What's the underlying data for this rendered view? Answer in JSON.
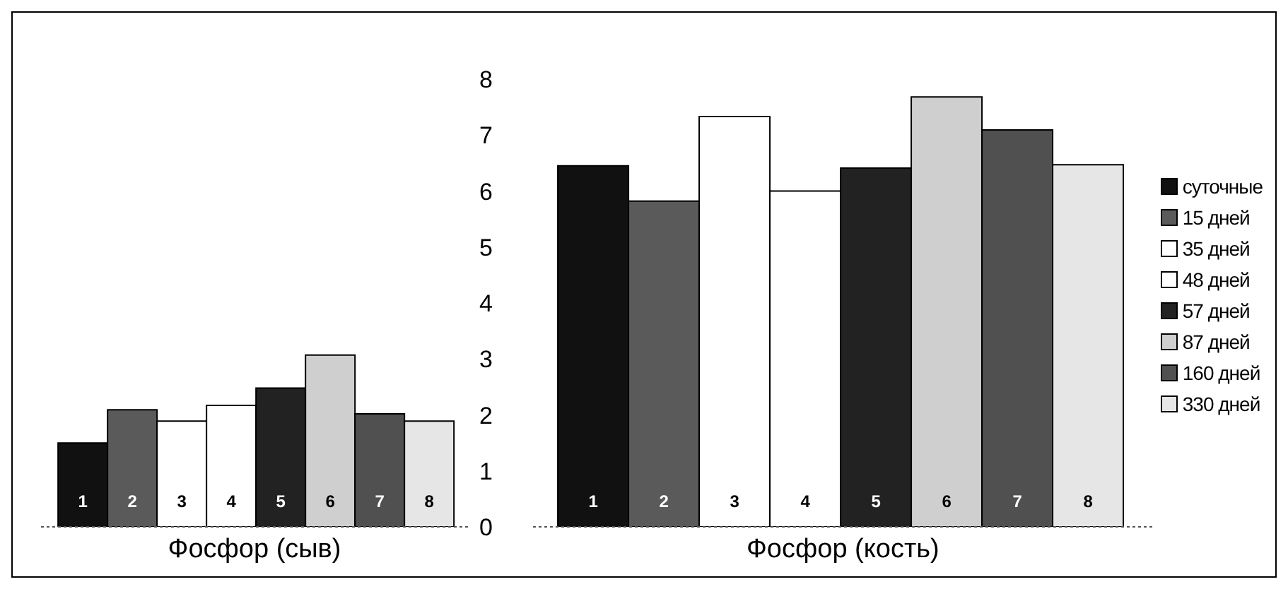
{
  "chart_data": {
    "type": "bar",
    "categories": [
      "Фосфор (сыв)",
      "Фосфор (кость)"
    ],
    "series": [
      {
        "name": "суточные",
        "color": "#111111",
        "values": [
          1.5,
          6.45
        ]
      },
      {
        "name": "15 дней",
        "color": "#5a5a5a",
        "values": [
          2.09,
          5.82
        ]
      },
      {
        "name": "35 дней",
        "color": "#ffffff",
        "values": [
          1.89,
          7.33
        ]
      },
      {
        "name": "48 дней",
        "color": "#ffffff",
        "values": [
          2.17,
          6.0
        ]
      },
      {
        "name": "57 дней",
        "color": "#222222",
        "values": [
          2.48,
          6.41
        ]
      },
      {
        "name": "87 дней",
        "color": "#cfcfcf",
        "values": [
          3.07,
          7.68
        ]
      },
      {
        "name": "160 дней",
        "color": "#505050",
        "values": [
          2.02,
          7.09
        ]
      },
      {
        "name": "330 дней",
        "color": "#e6e6e6",
        "values": [
          1.89,
          6.47
        ]
      }
    ],
    "ylim": [
      0,
      8
    ],
    "yticks": [
      0,
      1,
      2,
      3,
      4,
      5,
      6,
      7,
      8
    ],
    "legend": "right",
    "annotations": [
      "1",
      "2",
      "3",
      "4",
      "5",
      "6",
      "7",
      "8",
      "1",
      "2",
      "3",
      "4",
      "5",
      "6",
      "7",
      "8"
    ]
  }
}
